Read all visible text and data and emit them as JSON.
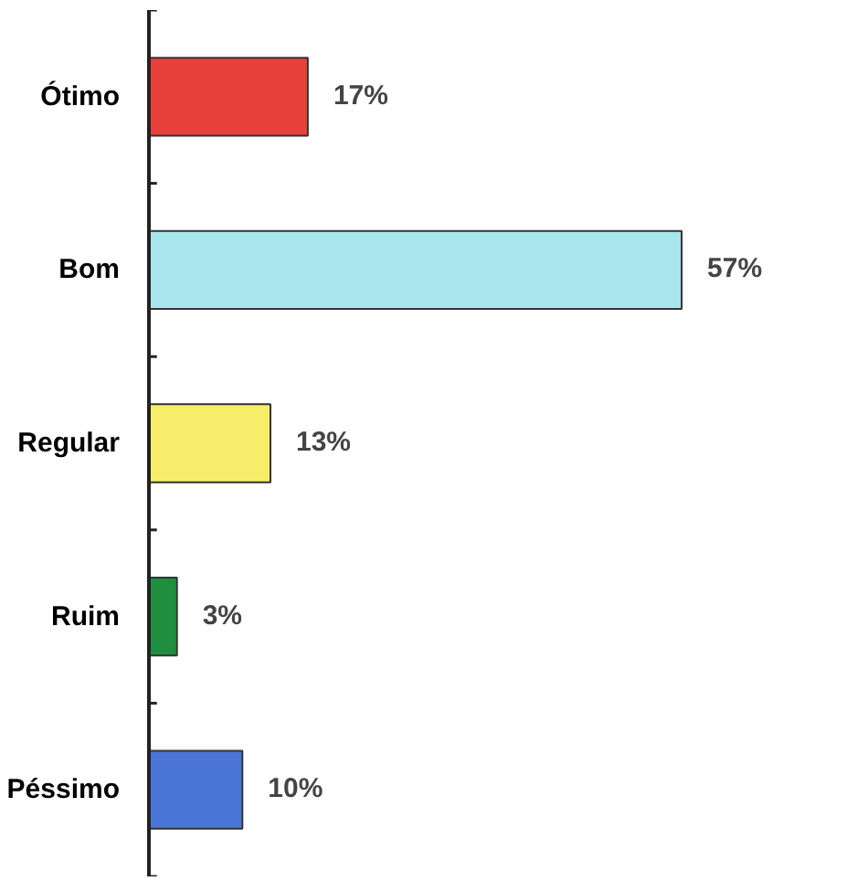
{
  "chart_data": {
    "type": "bar",
    "orientation": "horizontal",
    "categories": [
      "Ótimo",
      "Bom",
      "Regular",
      "Ruim",
      "Péssimo"
    ],
    "values": [
      17,
      57,
      13,
      3,
      10
    ],
    "colors": [
      "#e8403a",
      "#a8e6ee",
      "#f6ee6a",
      "#1f8f3f",
      "#4a74d6"
    ],
    "value_labels": [
      "17%",
      "57%",
      "13%",
      "3%",
      "10%"
    ],
    "grid": false
  }
}
